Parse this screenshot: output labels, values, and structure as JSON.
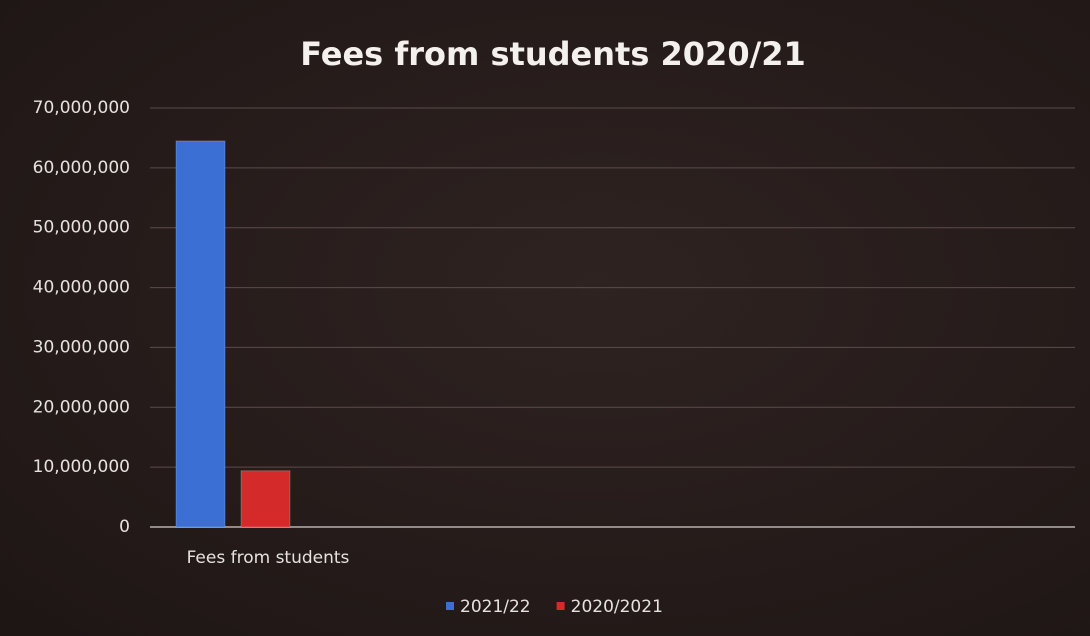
{
  "chart_data": {
    "type": "bar",
    "title": "Fees from students 2020/21",
    "categories": [
      "Fees from students"
    ],
    "series": [
      {
        "name": "2021/22",
        "color": "#3b6fd4",
        "values": [
          64500000
        ]
      },
      {
        "name": "2020/2021",
        "color": "#d42a2a",
        "values": [
          9400000
        ]
      }
    ],
    "ylim": [
      0,
      70000000
    ],
    "yticks": [
      0,
      {
        "value": 10000000,
        "label": "10,000,000"
      },
      {
        "value": 20000000,
        "label": "20,000,000"
      },
      {
        "value": 30000000,
        "label": "30,000,000"
      },
      {
        "value": 40000000,
        "label": "40,000,000"
      },
      {
        "value": 50000000,
        "label": "50,000,000"
      },
      {
        "value": 60000000,
        "label": "60,000,000"
      },
      {
        "value": 70000000,
        "label": "70,000,000"
      }
    ],
    "grid": true,
    "legend": "bottom"
  }
}
